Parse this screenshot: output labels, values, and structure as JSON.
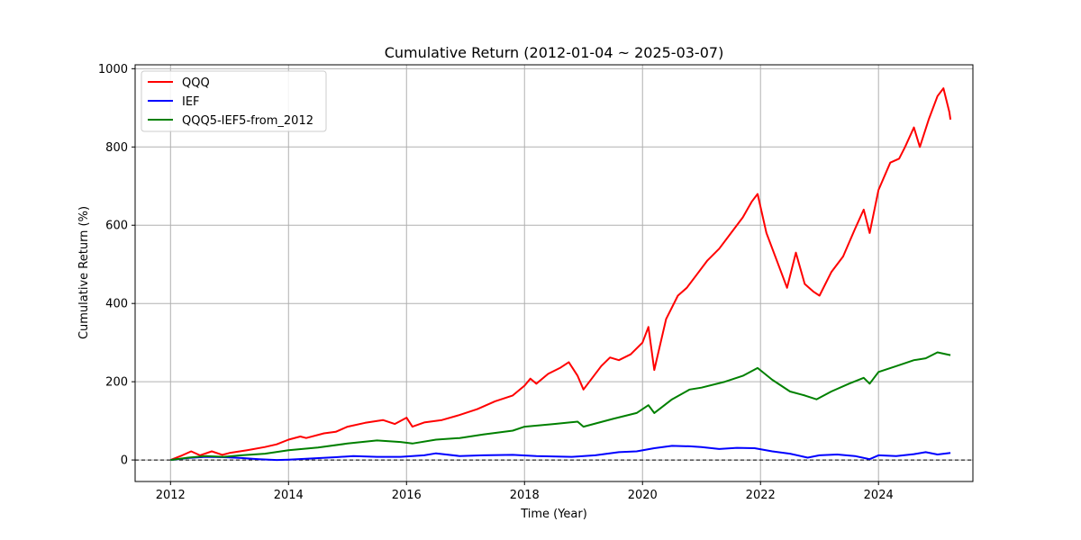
{
  "chart_data": {
    "type": "line",
    "title": "Cumulative Return (2012-01-04 ~ 2025-03-07)",
    "xlabel": "Time (Year)",
    "ylabel": "Cumulative Return (%)",
    "xlim": [
      2011.4,
      2025.6
    ],
    "ylim": [
      -55,
      1010
    ],
    "xticks": [
      2012,
      2014,
      2016,
      2018,
      2020,
      2022,
      2024
    ],
    "yticks": [
      0,
      200,
      400,
      600,
      800,
      1000
    ],
    "grid": true,
    "zero_line": true,
    "legend_position": "top-left",
    "series": [
      {
        "name": "QQQ",
        "color": "#ff0000",
        "points": [
          [
            2012.0,
            0
          ],
          [
            2012.2,
            12
          ],
          [
            2012.35,
            22
          ],
          [
            2012.5,
            12
          ],
          [
            2012.7,
            22
          ],
          [
            2012.88,
            13
          ],
          [
            2013.0,
            18
          ],
          [
            2013.3,
            25
          ],
          [
            2013.6,
            33
          ],
          [
            2013.8,
            40
          ],
          [
            2014.0,
            52
          ],
          [
            2014.2,
            60
          ],
          [
            2014.3,
            56
          ],
          [
            2014.6,
            68
          ],
          [
            2014.8,
            72
          ],
          [
            2015.0,
            85
          ],
          [
            2015.3,
            95
          ],
          [
            2015.6,
            102
          ],
          [
            2015.8,
            92
          ],
          [
            2016.0,
            108
          ],
          [
            2016.1,
            85
          ],
          [
            2016.3,
            96
          ],
          [
            2016.6,
            102
          ],
          [
            2016.9,
            115
          ],
          [
            2017.2,
            130
          ],
          [
            2017.5,
            150
          ],
          [
            2017.8,
            165
          ],
          [
            2018.0,
            190
          ],
          [
            2018.1,
            208
          ],
          [
            2018.2,
            195
          ],
          [
            2018.4,
            220
          ],
          [
            2018.6,
            235
          ],
          [
            2018.75,
            250
          ],
          [
            2018.9,
            215
          ],
          [
            2019.0,
            180
          ],
          [
            2019.3,
            240
          ],
          [
            2019.45,
            262
          ],
          [
            2019.6,
            255
          ],
          [
            2019.8,
            270
          ],
          [
            2020.0,
            300
          ],
          [
            2020.1,
            340
          ],
          [
            2020.2,
            230
          ],
          [
            2020.4,
            360
          ],
          [
            2020.6,
            420
          ],
          [
            2020.75,
            440
          ],
          [
            2020.9,
            470
          ],
          [
            2021.1,
            510
          ],
          [
            2021.3,
            540
          ],
          [
            2021.5,
            580
          ],
          [
            2021.7,
            620
          ],
          [
            2021.85,
            660
          ],
          [
            2021.95,
            680
          ],
          [
            2022.1,
            580
          ],
          [
            2022.3,
            500
          ],
          [
            2022.45,
            440
          ],
          [
            2022.6,
            530
          ],
          [
            2022.75,
            450
          ],
          [
            2022.9,
            430
          ],
          [
            2023.0,
            420
          ],
          [
            2023.2,
            480
          ],
          [
            2023.4,
            520
          ],
          [
            2023.6,
            590
          ],
          [
            2023.75,
            640
          ],
          [
            2023.85,
            580
          ],
          [
            2024.0,
            690
          ],
          [
            2024.2,
            760
          ],
          [
            2024.35,
            770
          ],
          [
            2024.45,
            800
          ],
          [
            2024.6,
            850
          ],
          [
            2024.7,
            800
          ],
          [
            2024.85,
            870
          ],
          [
            2025.0,
            930
          ],
          [
            2025.1,
            950
          ],
          [
            2025.2,
            890
          ],
          [
            2025.22,
            870
          ]
        ]
      },
      {
        "name": "IEF",
        "color": "#0000ff",
        "points": [
          [
            2012.0,
            0
          ],
          [
            2012.3,
            5
          ],
          [
            2012.6,
            8
          ],
          [
            2012.9,
            7
          ],
          [
            2013.2,
            5
          ],
          [
            2013.5,
            2
          ],
          [
            2013.8,
            0
          ],
          [
            2014.0,
            1
          ],
          [
            2014.4,
            4
          ],
          [
            2014.8,
            7
          ],
          [
            2015.1,
            10
          ],
          [
            2015.5,
            8
          ],
          [
            2015.9,
            8
          ],
          [
            2016.3,
            12
          ],
          [
            2016.5,
            17
          ],
          [
            2016.9,
            10
          ],
          [
            2017.3,
            12
          ],
          [
            2017.8,
            13
          ],
          [
            2018.2,
            10
          ],
          [
            2018.8,
            8
          ],
          [
            2019.2,
            12
          ],
          [
            2019.6,
            20
          ],
          [
            2019.9,
            22
          ],
          [
            2020.2,
            30
          ],
          [
            2020.5,
            36
          ],
          [
            2020.8,
            35
          ],
          [
            2021.0,
            33
          ],
          [
            2021.3,
            28
          ],
          [
            2021.6,
            31
          ],
          [
            2021.9,
            30
          ],
          [
            2022.2,
            22
          ],
          [
            2022.5,
            16
          ],
          [
            2022.8,
            6
          ],
          [
            2023.0,
            12
          ],
          [
            2023.3,
            14
          ],
          [
            2023.6,
            10
          ],
          [
            2023.85,
            2
          ],
          [
            2024.0,
            12
          ],
          [
            2024.3,
            10
          ],
          [
            2024.6,
            15
          ],
          [
            2024.8,
            20
          ],
          [
            2025.0,
            14
          ],
          [
            2025.22,
            18
          ]
        ]
      },
      {
        "name": "QQQ5-IEF5-from_2012",
        "color": "#008000",
        "points": [
          [
            2012.0,
            0
          ],
          [
            2012.3,
            6
          ],
          [
            2012.6,
            10
          ],
          [
            2012.9,
            8
          ],
          [
            2013.2,
            12
          ],
          [
            2013.6,
            16
          ],
          [
            2014.0,
            25
          ],
          [
            2014.5,
            32
          ],
          [
            2015.0,
            42
          ],
          [
            2015.5,
            50
          ],
          [
            2015.9,
            46
          ],
          [
            2016.1,
            42
          ],
          [
            2016.5,
            52
          ],
          [
            2016.9,
            56
          ],
          [
            2017.3,
            65
          ],
          [
            2017.8,
            75
          ],
          [
            2018.0,
            85
          ],
          [
            2018.5,
            92
          ],
          [
            2018.9,
            98
          ],
          [
            2019.0,
            85
          ],
          [
            2019.5,
            105
          ],
          [
            2019.9,
            120
          ],
          [
            2020.1,
            140
          ],
          [
            2020.2,
            120
          ],
          [
            2020.5,
            155
          ],
          [
            2020.8,
            180
          ],
          [
            2021.0,
            185
          ],
          [
            2021.4,
            200
          ],
          [
            2021.7,
            215
          ],
          [
            2021.95,
            235
          ],
          [
            2022.2,
            205
          ],
          [
            2022.5,
            175
          ],
          [
            2022.75,
            165
          ],
          [
            2022.95,
            155
          ],
          [
            2023.2,
            175
          ],
          [
            2023.5,
            195
          ],
          [
            2023.75,
            210
          ],
          [
            2023.85,
            195
          ],
          [
            2024.0,
            225
          ],
          [
            2024.3,
            240
          ],
          [
            2024.6,
            255
          ],
          [
            2024.8,
            260
          ],
          [
            2025.0,
            275
          ],
          [
            2025.22,
            268
          ]
        ]
      }
    ]
  }
}
